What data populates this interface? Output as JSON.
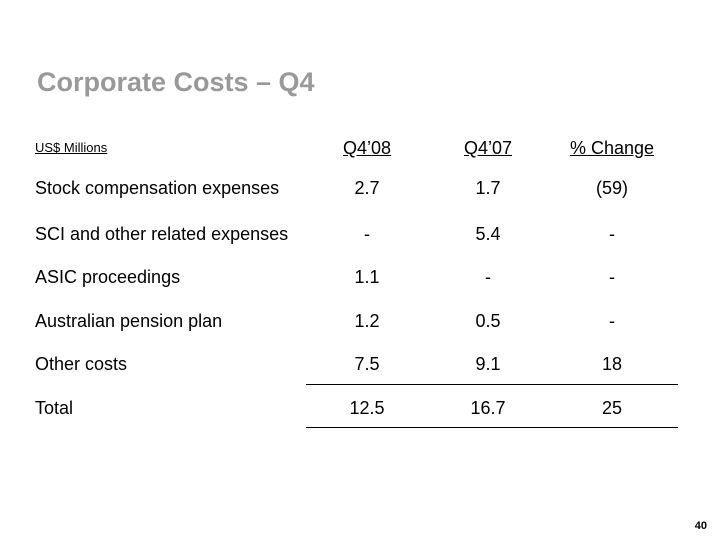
{
  "title": "Corporate Costs – Q4",
  "table": {
    "header": {
      "label": "US$ Millions",
      "cols": [
        "Q4’08",
        "Q4’07",
        "% Change"
      ]
    },
    "rows": [
      {
        "label": "Stock compensation expenses",
        "values": [
          "2.7",
          "1.7",
          "(59)"
        ]
      },
      {
        "label": "SCI and other related expenses",
        "values": [
          "-",
          "5.4",
          "-"
        ]
      },
      {
        "label": "ASIC proceedings",
        "values": [
          "1.1",
          "-",
          "-"
        ]
      },
      {
        "label": "Australian pension plan",
        "values": [
          "1.2",
          "0.5",
          "-"
        ]
      },
      {
        "label": "Other costs",
        "values": [
          "7.5",
          "9.1",
          "18"
        ]
      },
      {
        "label": "Total",
        "values": [
          "12.5",
          "16.7",
          "25"
        ]
      }
    ]
  },
  "page_number": "40"
}
